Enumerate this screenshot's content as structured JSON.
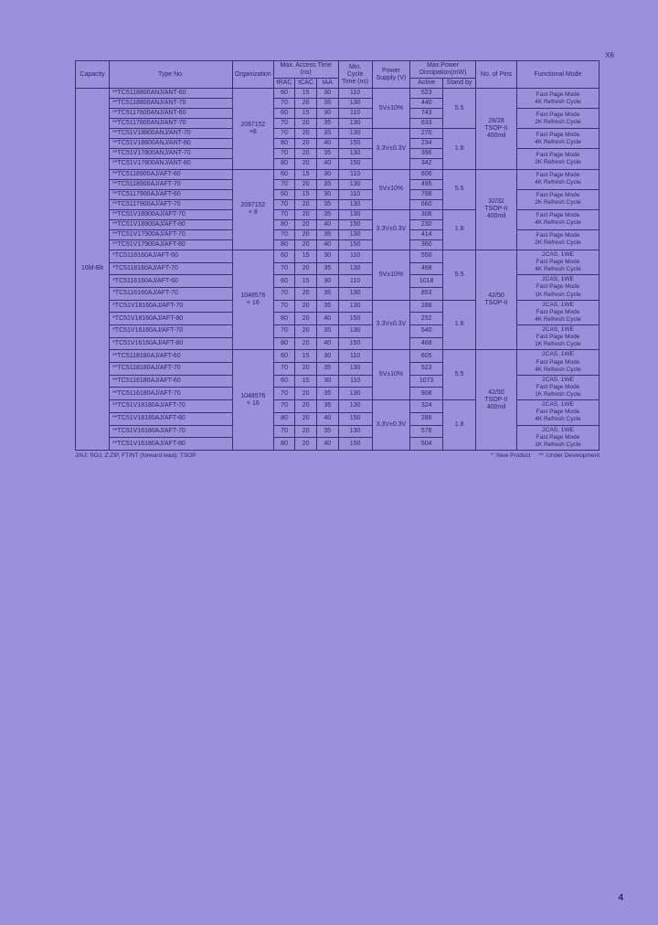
{
  "corner_label": "X6",
  "page_number": "4",
  "footnote_left": "J/AJ: SOJ, Z:ZIP, FT/NT (forward lead): TSOP",
  "footnote_right_a": "* :New Product",
  "footnote_right_b": "** :Under Development",
  "headers": {
    "capacity": "Capacity",
    "typeno": "Type No.",
    "organization": "Organization",
    "max_access": "Max. Access Time (ns)",
    "trac": "tRAC",
    "tcac": "tCAC",
    "taa": "tAA",
    "min_cycle": "Min. Cycle Time (ns)",
    "power_supply": "Power Supply (V)",
    "max_power": "Max.Power Dissipation(mW)",
    "active": "Active",
    "standby": "Stand by",
    "pins": "No. of Pins",
    "fmode": "Functional Mode"
  },
  "capacity": "16M-Bit",
  "org": {
    "a": "2097152\n×8",
    "b": "2097152\n× 8",
    "c": "1048576\n× 16",
    "d": "1048576\n× 16"
  },
  "ps": {
    "a": "5V±10%",
    "b": "3.3V±0.3V",
    "c": "5V±10%",
    "d": "3.3V±0.3V",
    "e": "5V±10%",
    "f": "3.3V±0.3V",
    "g": "5V±10%",
    "h": "3.3V±0.3V"
  },
  "stb": {
    "a": "5.5",
    "b": "1.8",
    "c": "5.5",
    "d": "1.8",
    "e": "5.5",
    "f": "1.8",
    "g": "5.5",
    "h": "1.8"
  },
  "pins": {
    "a": "28/28\nTSOP-II\n400mil",
    "b": "32/32\nTSOP-II\n400mil",
    "c": "42/50\nTSOP-II",
    "d": "42/50\nTSOP-II\n400mil"
  },
  "fm": {
    "fp4k": "Fast Page Mode\n4K Refresh Cycle",
    "fp2k": "Fast Page Mode\n2K Refresh Cycle",
    "c1fp4k": "2CAS, 1WE\nFast Page Mode\n4K Refresh Cycle",
    "c1fp1k": "2CAS, 1WE\nFast Page Mode\n1K Refresh Cycle"
  },
  "rows": {
    "r1": {
      "type": "**TC5118800ANJ/ANT-60",
      "trac": "60",
      "tcac": "15",
      "taa": "30",
      "cyc": "110",
      "act": "523"
    },
    "r2": {
      "type": "**TC5118800ANJ/ANT-70",
      "trac": "70",
      "tcac": "20",
      "taa": "35",
      "cyc": "130",
      "act": "440"
    },
    "r3": {
      "type": "**TC5117800ANJ/ANT-60",
      "trac": "60",
      "tcac": "15",
      "taa": "30",
      "cyc": "110",
      "act": "743"
    },
    "r4": {
      "type": "**TC5117800ANJ/ANT-70",
      "trac": "70",
      "tcac": "20",
      "taa": "35",
      "cyc": "130",
      "act": "633"
    },
    "r5": {
      "type": "**TC51V18800ANJ/ANT-70",
      "trac": "70",
      "tcac": "20",
      "taa": "35",
      "cyc": "130",
      "act": "270"
    },
    "r6": {
      "type": "**TC51V18800ANJ/ANT-80",
      "trac": "80",
      "tcac": "20",
      "taa": "40",
      "cyc": "150",
      "act": "234"
    },
    "r7": {
      "type": "**TC51V17800ANJ/ANT-70",
      "trac": "70",
      "tcac": "20",
      "taa": "35",
      "cyc": "130",
      "act": "396"
    },
    "r8": {
      "type": "**TC51V17800ANJ/ANT-80",
      "trac": "80",
      "tcac": "20",
      "taa": "40",
      "cyc": "150",
      "act": "342"
    },
    "r9": {
      "type": "**TC5118900AJ/AFT-60",
      "trac": "60",
      "tcac": "15",
      "taa": "30",
      "cyc": "110",
      "act": "606"
    },
    "r10": {
      "type": "**TC5118900AJ/AFT-70",
      "trac": "70",
      "tcac": "20",
      "taa": "35",
      "cyc": "130",
      "act": "495"
    },
    "r11": {
      "type": "**TC5117900AJ/AFT-60",
      "trac": "60",
      "tcac": "15",
      "taa": "30",
      "cyc": "110",
      "act": "798"
    },
    "r12": {
      "type": "**TC5117900AJ/AFT-70",
      "trac": "70",
      "tcac": "20",
      "taa": "35",
      "cyc": "130",
      "act": "660"
    },
    "r13": {
      "type": "**TC51V18900AJ/AFT-70",
      "trac": "70",
      "tcac": "20",
      "taa": "35",
      "cyc": "130",
      "act": "306"
    },
    "r14": {
      "type": "**TC51V18900AJ/AFT-80",
      "trac": "80",
      "tcac": "20",
      "taa": "40",
      "cyc": "150",
      "act": "230"
    },
    "r15": {
      "type": "**TC51V17900AJ/AFT-70",
      "trac": "70",
      "tcac": "20",
      "taa": "35",
      "cyc": "130",
      "act": "414"
    },
    "r16": {
      "type": "**TC51V17900AJ/AFT-80",
      "trac": "80",
      "tcac": "20",
      "taa": "40",
      "cyc": "150",
      "act": "360"
    },
    "r17": {
      "type": "*TC5118160AJ/AFT-60",
      "trac": "60",
      "tcac": "15",
      "taa": "30",
      "cyc": "110",
      "act": "550"
    },
    "r18": {
      "type": "*TC5118160AJ/AFT-70",
      "trac": "70",
      "tcac": "20",
      "taa": "35",
      "cyc": "130",
      "act": "468"
    },
    "r19": {
      "type": "*TC5116160AJ/AFT-60",
      "trac": "60",
      "tcac": "15",
      "taa": "30",
      "cyc": "110",
      "act": "1018"
    },
    "r20": {
      "type": "*TC5116160AJ/AFT-70",
      "trac": "70",
      "tcac": "20",
      "taa": "35",
      "cyc": "130",
      "act": "853"
    },
    "r21": {
      "type": "*TC51V18160AJ/AFT-70",
      "trac": "70",
      "tcac": "20",
      "taa": "35",
      "cyc": "130",
      "act": "288"
    },
    "r22": {
      "type": "*TC51V18160AJ/AFT-80",
      "trac": "80",
      "tcac": "20",
      "taa": "40",
      "cyc": "150",
      "act": "252"
    },
    "r23": {
      "type": "*TC51V16160AJ/AFT-70",
      "trac": "70",
      "tcac": "20",
      "taa": "35",
      "cyc": "130",
      "act": "540"
    },
    "r24": {
      "type": "*TC51V16160AJ/AFT-80",
      "trac": "80",
      "tcac": "20",
      "taa": "40",
      "cyc": "150",
      "act": "468"
    },
    "r25": {
      "type": "**TC5118180AJ/AFT-60",
      "trac": "60",
      "tcac": "15",
      "taa": "30",
      "cyc": "110",
      "act": "605"
    },
    "r26": {
      "type": "**TC5118180AJ/AFT-70",
      "trac": "70",
      "tcac": "20",
      "taa": "35",
      "cyc": "130",
      "act": "523"
    },
    "r27": {
      "type": "**TC5116180AJ/AFT-60",
      "trac": "60",
      "tcac": "15",
      "taa": "30",
      "cyc": "110",
      "act": "1073"
    },
    "r28": {
      "type": "**TC5116180AJ/AFT-70",
      "trac": "70",
      "tcac": "20",
      "taa": "35",
      "cyc": "130",
      "act": "908"
    },
    "r29": {
      "type": "**TC51V18180AJ/AFT-70",
      "trac": "70",
      "tcac": "20",
      "taa": "35",
      "cyc": "130",
      "act": "324"
    },
    "r30": {
      "type": "**TC51V18180AJ/AFT-80",
      "trac": "80",
      "tcac": "20",
      "taa": "40",
      "cyc": "150",
      "act": "288"
    },
    "r31": {
      "type": "**TC51V16180AJ/AFT-70",
      "trac": "70",
      "tcac": "20",
      "taa": "35",
      "cyc": "130",
      "act": "576"
    },
    "r32": {
      "type": "**TC51V16180AJ/AFT-80",
      "trac": "80",
      "tcac": "20",
      "taa": "40",
      "cyc": "150",
      "act": "504"
    }
  }
}
